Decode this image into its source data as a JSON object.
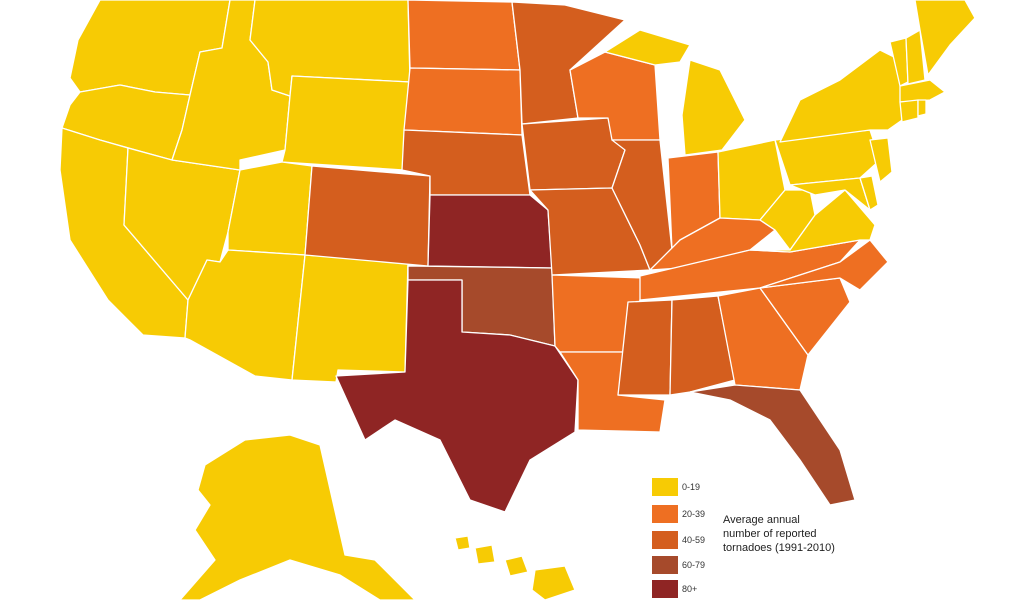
{
  "colors": {
    "bin_0_19": "#F7CB04",
    "bin_20_39": "#EE6F22",
    "bin_40_59": "#D45E1E",
    "bin_60_79": "#A64A2B",
    "bin_80_plus": "#8F2524",
    "border": "#ffffff",
    "background": "#ffffff"
  },
  "legend": {
    "title_line1": "Average annual",
    "title_line2": "number of reported",
    "title_line3": "tornadoes (1991-2010)",
    "bins": [
      {
        "label": "0-19",
        "color_key": "bin_0_19"
      },
      {
        "label": "20-39",
        "color_key": "bin_20_39"
      },
      {
        "label": "40-59",
        "color_key": "bin_40_59"
      },
      {
        "label": "60-79",
        "color_key": "bin_60_79"
      },
      {
        "label": "80+",
        "color_key": "bin_80_plus"
      }
    ]
  },
  "states": {
    "TX": "bin_80_plus",
    "KS": "bin_80_plus",
    "OK": "bin_60_79",
    "FL": "bin_60_79",
    "CO": "bin_40_59",
    "NE": "bin_40_59",
    "MN": "bin_40_59",
    "IA": "bin_40_59",
    "MO": "bin_40_59",
    "IL": "bin_40_59",
    "MS": "bin_40_59",
    "AL": "bin_40_59",
    "ND": "bin_20_39",
    "SD": "bin_20_39",
    "WI": "bin_20_39",
    "IN": "bin_20_39",
    "KY": "bin_20_39",
    "TN": "bin_20_39",
    "AR": "bin_20_39",
    "LA": "bin_20_39",
    "GA": "bin_20_39",
    "SC": "bin_20_39",
    "NC": "bin_20_39",
    "WA": "bin_0_19",
    "OR": "bin_0_19",
    "CA": "bin_0_19",
    "NV": "bin_0_19",
    "ID": "bin_0_19",
    "MT": "bin_0_19",
    "WY": "bin_0_19",
    "UT": "bin_0_19",
    "AZ": "bin_0_19",
    "NM": "bin_0_19",
    "MI": "bin_0_19",
    "OH": "bin_0_19",
    "WV": "bin_0_19",
    "VA": "bin_0_19",
    "PA": "bin_0_19",
    "NY": "bin_0_19",
    "VT": "bin_0_19",
    "NH": "bin_0_19",
    "ME": "bin_0_19",
    "MA": "bin_0_19",
    "CT": "bin_0_19",
    "RI": "bin_0_19",
    "NJ": "bin_0_19",
    "DE": "bin_0_19",
    "MD": "bin_0_19",
    "AK": "bin_0_19",
    "HI": "bin_0_19"
  }
}
